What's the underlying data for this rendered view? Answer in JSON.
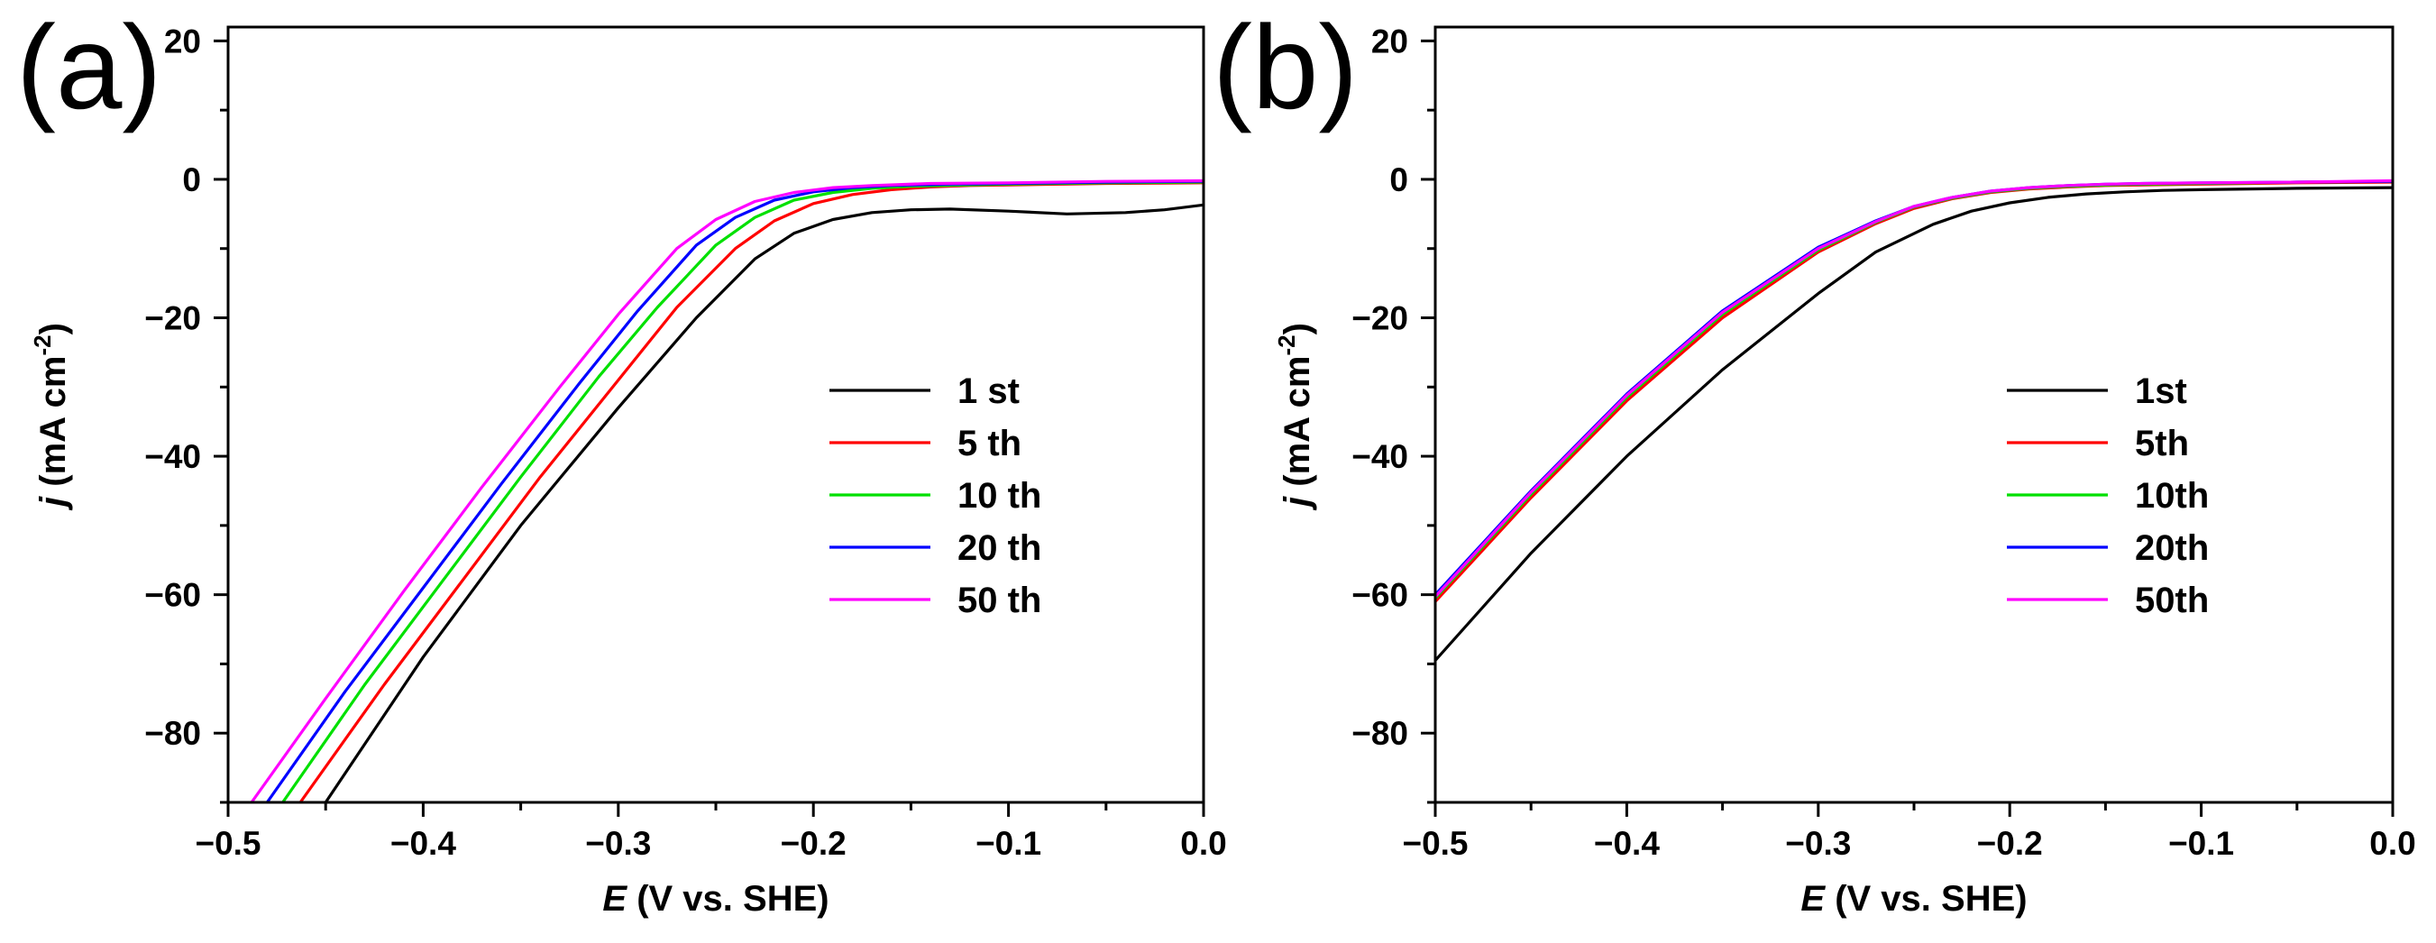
{
  "chart_data": [
    {
      "panel_label": "(a)",
      "type": "line",
      "xlabel": {
        "var": "E",
        "rest": " (V vs. SHE)"
      },
      "ylabel": {
        "var": "j",
        "rest": " (mA cm",
        "sup": "-2",
        "close": ")"
      },
      "xlim": [
        -0.5,
        0.0
      ],
      "ylim": [
        -90,
        22
      ],
      "xticks": [
        -0.5,
        -0.4,
        -0.3,
        -0.2,
        -0.1,
        0.0
      ],
      "xtick_labels": [
        "−0.5",
        "−0.4",
        "−0.3",
        "−0.2",
        "−0.1",
        "0.0"
      ],
      "yticks": [
        -80,
        -60,
        -40,
        -20,
        0,
        20
      ],
      "ytick_labels": [
        "−80",
        "−60",
        "−40",
        "−20",
        "0",
        "20"
      ],
      "legend_position": "center-right",
      "series": [
        {
          "name": "1 st",
          "color": "#000000",
          "x": [
            -0.45,
            -0.4,
            -0.35,
            -0.3,
            -0.26,
            -0.23,
            -0.21,
            -0.19,
            -0.17,
            -0.15,
            -0.13,
            -0.1,
            -0.07,
            -0.04,
            -0.02,
            0.0
          ],
          "y": [
            -90.0,
            -69.0,
            -50.0,
            -33.0,
            -20.0,
            -11.5,
            -7.8,
            -5.8,
            -4.8,
            -4.4,
            -4.3,
            -4.6,
            -5.0,
            -4.8,
            -4.4,
            -3.7
          ]
        },
        {
          "name": "5 th",
          "color": "#ff0000",
          "x": [
            -0.463,
            -0.42,
            -0.38,
            -0.34,
            -0.3,
            -0.27,
            -0.24,
            -0.22,
            -0.2,
            -0.18,
            -0.16,
            -0.14,
            -0.12,
            -0.1,
            -0.05,
            0.0
          ],
          "y": [
            -90.0,
            -73.0,
            -58.0,
            -43.0,
            -29.0,
            -18.5,
            -10.0,
            -6.0,
            -3.5,
            -2.2,
            -1.5,
            -1.1,
            -0.9,
            -0.8,
            -0.6,
            -0.5
          ]
        },
        {
          "name": "10 th",
          "color": "#00e000",
          "x": [
            -0.472,
            -0.43,
            -0.39,
            -0.35,
            -0.31,
            -0.28,
            -0.25,
            -0.23,
            -0.21,
            -0.19,
            -0.17,
            -0.15,
            -0.12,
            -0.1,
            -0.05,
            0.0
          ],
          "y": [
            -90.0,
            -73.0,
            -58.0,
            -43.0,
            -28.5,
            -18.5,
            -9.5,
            -5.5,
            -3.0,
            -1.9,
            -1.3,
            -1.0,
            -0.8,
            -0.7,
            -0.5,
            -0.4
          ]
        },
        {
          "name": "20 th",
          "color": "#0000ff",
          "x": [
            -0.48,
            -0.44,
            -0.4,
            -0.36,
            -0.32,
            -0.29,
            -0.26,
            -0.24,
            -0.22,
            -0.2,
            -0.18,
            -0.16,
            -0.13,
            -0.1,
            -0.05,
            0.0
          ],
          "y": [
            -90.0,
            -74.0,
            -59.0,
            -44.0,
            -29.5,
            -19.0,
            -9.5,
            -5.5,
            -3.0,
            -1.8,
            -1.2,
            -0.9,
            -0.7,
            -0.6,
            -0.4,
            -0.3
          ]
        },
        {
          "name": "50 th",
          "color": "#ff00ff",
          "x": [
            -0.488,
            -0.45,
            -0.41,
            -0.37,
            -0.33,
            -0.3,
            -0.27,
            -0.25,
            -0.23,
            -0.21,
            -0.19,
            -0.17,
            -0.14,
            -0.1,
            -0.05,
            0.0
          ],
          "y": [
            -90.0,
            -75.0,
            -59.5,
            -44.5,
            -30.0,
            -19.5,
            -10.0,
            -5.8,
            -3.2,
            -1.9,
            -1.2,
            -0.9,
            -0.6,
            -0.5,
            -0.3,
            -0.2
          ]
        }
      ]
    },
    {
      "panel_label": "(b)",
      "type": "line",
      "xlabel": {
        "var": "E",
        "rest": " (V vs. SHE)"
      },
      "ylabel": {
        "var": "j",
        "rest": " (mA cm",
        "sup": "-2",
        "close": ")"
      },
      "xlim": [
        -0.5,
        0.0
      ],
      "ylim": [
        -90,
        22
      ],
      "xticks": [
        -0.5,
        -0.4,
        -0.3,
        -0.2,
        -0.1,
        0.0
      ],
      "xtick_labels": [
        "−0.5",
        "−0.4",
        "−0.3",
        "−0.2",
        "−0.1",
        "0.0"
      ],
      "yticks": [
        -80,
        -60,
        -40,
        -20,
        0,
        20
      ],
      "ytick_labels": [
        "−80",
        "−60",
        "−40",
        "−20",
        "0",
        "20"
      ],
      "legend_position": "center-right",
      "series": [
        {
          "name": "1st",
          "color": "#000000",
          "x": [
            -0.5,
            -0.45,
            -0.4,
            -0.35,
            -0.3,
            -0.27,
            -0.24,
            -0.22,
            -0.2,
            -0.18,
            -0.16,
            -0.14,
            -0.12,
            -0.1,
            -0.05,
            0.0
          ],
          "y": [
            -69.5,
            -54.0,
            -40.0,
            -27.5,
            -16.5,
            -10.5,
            -6.5,
            -4.6,
            -3.4,
            -2.6,
            -2.1,
            -1.8,
            -1.6,
            -1.5,
            -1.3,
            -1.2
          ]
        },
        {
          "name": "5th",
          "color": "#ff0000",
          "x": [
            -0.5,
            -0.45,
            -0.4,
            -0.35,
            -0.3,
            -0.27,
            -0.25,
            -0.23,
            -0.21,
            -0.19,
            -0.17,
            -0.15,
            -0.13,
            -0.1,
            -0.05,
            0.0
          ],
          "y": [
            -61.0,
            -46.0,
            -32.0,
            -20.0,
            -10.5,
            -6.4,
            -4.2,
            -2.8,
            -1.9,
            -1.4,
            -1.1,
            -0.9,
            -0.8,
            -0.7,
            -0.5,
            -0.4
          ]
        },
        {
          "name": "10th",
          "color": "#00e000",
          "x": [
            -0.5,
            -0.45,
            -0.4,
            -0.35,
            -0.3,
            -0.27,
            -0.25,
            -0.23,
            -0.21,
            -0.19,
            -0.17,
            -0.15,
            -0.13,
            -0.1,
            -0.05,
            0.0
          ],
          "y": [
            -60.5,
            -45.5,
            -31.5,
            -19.5,
            -10.2,
            -6.2,
            -4.0,
            -2.7,
            -1.8,
            -1.3,
            -1.0,
            -0.8,
            -0.7,
            -0.6,
            -0.4,
            -0.3
          ]
        },
        {
          "name": "20th",
          "color": "#0000ff",
          "x": [
            -0.5,
            -0.45,
            -0.4,
            -0.35,
            -0.3,
            -0.27,
            -0.25,
            -0.23,
            -0.21,
            -0.19,
            -0.17,
            -0.15,
            -0.13,
            -0.1,
            -0.05,
            0.0
          ],
          "y": [
            -60.0,
            -45.0,
            -31.0,
            -19.0,
            -9.8,
            -6.0,
            -3.9,
            -2.6,
            -1.7,
            -1.2,
            -0.9,
            -0.7,
            -0.6,
            -0.5,
            -0.4,
            -0.3
          ]
        },
        {
          "name": "50th",
          "color": "#ff00ff",
          "x": [
            -0.5,
            -0.45,
            -0.4,
            -0.35,
            -0.3,
            -0.27,
            -0.25,
            -0.23,
            -0.21,
            -0.19,
            -0.17,
            -0.15,
            -0.13,
            -0.1,
            -0.05,
            0.0
          ],
          "y": [
            -60.3,
            -45.2,
            -31.2,
            -19.2,
            -10.0,
            -6.1,
            -3.9,
            -2.6,
            -1.7,
            -1.2,
            -0.9,
            -0.7,
            -0.6,
            -0.5,
            -0.4,
            -0.2
          ]
        }
      ]
    }
  ]
}
